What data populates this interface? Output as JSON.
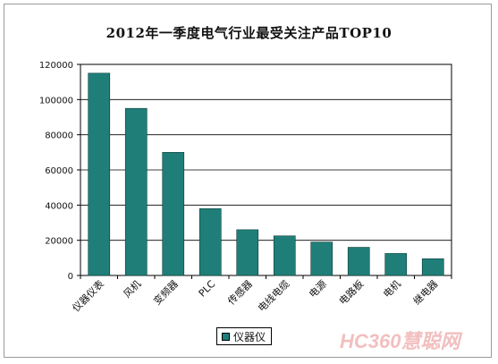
{
  "chart_data": {
    "type": "bar",
    "title": "2012年一季度电气行业最受关注产品TOP10",
    "categories": [
      "仪器仪表",
      "风机",
      "变频器",
      "PLC",
      "传感器",
      "电线电缆",
      "电源",
      "电路板",
      "电机",
      "继电器"
    ],
    "series": [
      {
        "name": "仪器仪",
        "values": [
          115000,
          95000,
          70000,
          38000,
          26000,
          22500,
          19000,
          16000,
          12500,
          9500
        ],
        "color": "#1f7f78"
      }
    ],
    "ylim": [
      0,
      120000
    ],
    "yticks": [
      "0",
      "20000",
      "40000",
      "60000",
      "80000",
      "100000",
      "120000"
    ],
    "grid": true,
    "legend_position": "bottom"
  },
  "watermark": {
    "text": "HC360慧聪网"
  }
}
